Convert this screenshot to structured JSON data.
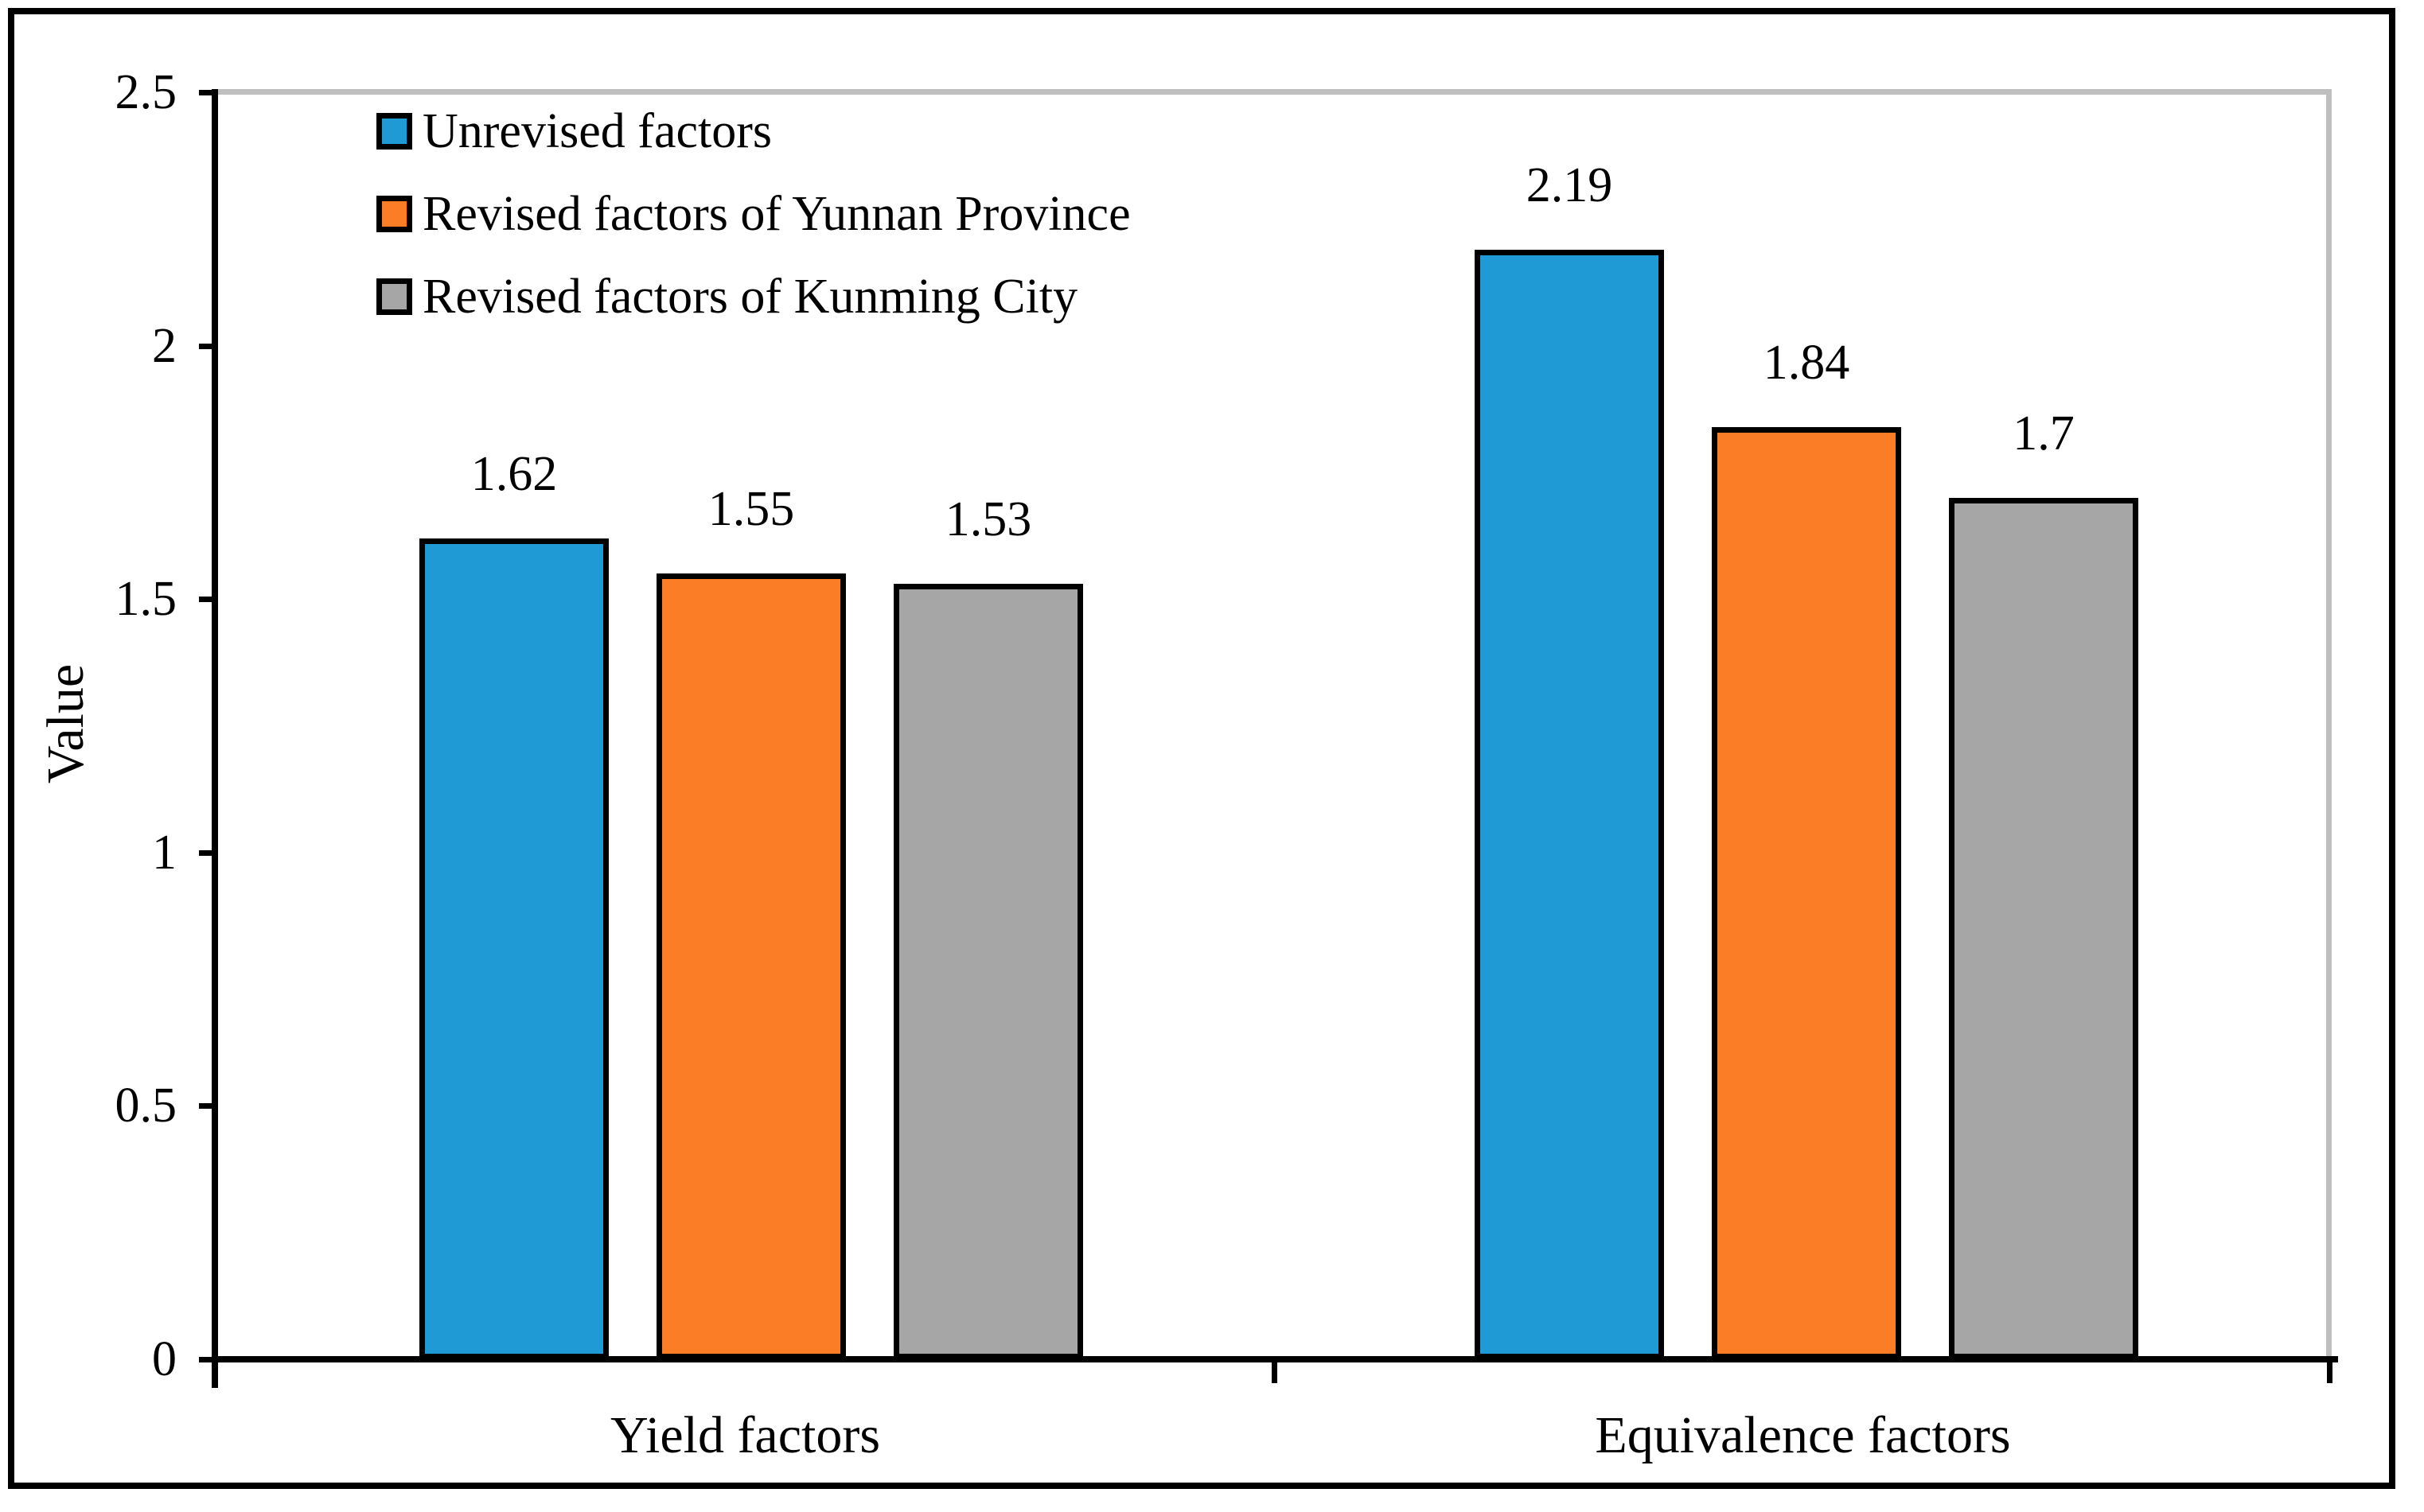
{
  "chart_data": {
    "type": "bar",
    "title": "",
    "ylabel": "Value",
    "xlabel": "",
    "categories": [
      "Yield factors",
      "Equivalence factors"
    ],
    "series": [
      {
        "name": "Unrevised factors",
        "color": "#1F9AD5",
        "values": [
          1.62,
          2.19
        ]
      },
      {
        "name": "Revised factors of Yunnan Province",
        "color": "#FB7D26",
        "values": [
          1.55,
          1.84
        ]
      },
      {
        "name": "Revised factors of Kunming City",
        "color": "#A6A6A6",
        "values": [
          1.53,
          1.7
        ]
      }
    ],
    "data_labels_shown": true,
    "data_labels": [
      [
        "1.62",
        "2.19"
      ],
      [
        "1.55",
        "1.84"
      ],
      [
        "1.53",
        "1.7"
      ]
    ],
    "y_ticks": [
      "0",
      "0.5",
      "1",
      "1.5",
      "2",
      "2.5"
    ],
    "ylim": [
      0,
      2.5
    ],
    "legend_position": "top-left",
    "grid": false,
    "plot_border_colors": {
      "axis": "#000000",
      "top_right_edge": "#BFBFBF"
    },
    "bar_border_color": "#000000",
    "background": "#FFFFFF"
  }
}
